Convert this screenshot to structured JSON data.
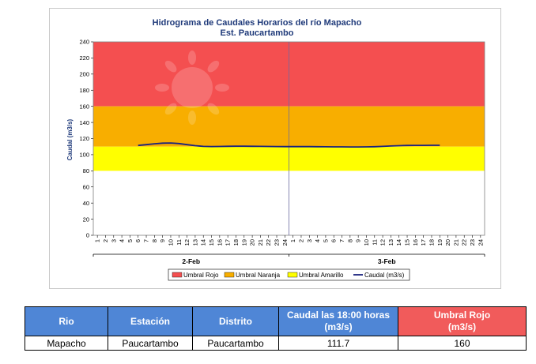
{
  "chart_data": {
    "type": "line",
    "title": "Hidrograma de Caudales Horarios del río Mapacho",
    "subtitle": "Est. Paucartambo",
    "ylabel": "Caudal (m3/s)",
    "ylim": [
      0,
      240
    ],
    "yticks": [
      0,
      20,
      40,
      60,
      80,
      100,
      120,
      140,
      160,
      180,
      200,
      220,
      240
    ],
    "hour_ticks": [
      "1",
      "2",
      "3",
      "4",
      "5",
      "6",
      "7",
      "8",
      "9",
      "10",
      "11",
      "12",
      "13",
      "14",
      "15",
      "16",
      "17",
      "18",
      "19",
      "20",
      "21",
      "22",
      "23",
      "24",
      "1",
      "2",
      "3",
      "4",
      "5",
      "6",
      "7",
      "8",
      "9",
      "10",
      "11",
      "12",
      "13",
      "14",
      "15",
      "16",
      "17",
      "18",
      "19",
      "20",
      "21",
      "22",
      "23",
      "24"
    ],
    "days": [
      "2-Feb",
      "3-Feb"
    ],
    "bands": [
      {
        "name": "Umbral Rojo",
        "from": 160,
        "to": 240,
        "color": "#f44f50"
      },
      {
        "name": "Umbral Naranja",
        "from": 110,
        "to": 160,
        "color": "#f8ae00"
      },
      {
        "name": "Umbral Amarillo",
        "from": 80,
        "to": 110,
        "color": "#ffff00"
      }
    ],
    "series": [
      {
        "name": "Caudal (m3/s)",
        "color": "#1a237e",
        "start_index": 5,
        "values": [
          111.5,
          112.5,
          113.5,
          114.3,
          114.5,
          113.8,
          112.5,
          111.2,
          110.3,
          110.1,
          110.2,
          110.4,
          110.5,
          110.5,
          110.4,
          110.3,
          110.2,
          110.1,
          110.0,
          110.0,
          110.0,
          110.0,
          109.9,
          109.8,
          109.7,
          109.7,
          109.6,
          109.6,
          109.7,
          109.9,
          110.3,
          110.8,
          111.2,
          111.5,
          111.6,
          111.6,
          111.7,
          111.7
        ]
      }
    ],
    "legend": {
      "position": "bottom",
      "items": [
        {
          "label": "Umbral Rojo",
          "color": "#f44f50",
          "kind": "box"
        },
        {
          "label": "Umbral Naranja",
          "color": "#f8ae00",
          "kind": "box"
        },
        {
          "label": "Umbral Amarillo",
          "color": "#ffff00",
          "kind": "box"
        },
        {
          "label": "Caudal (m3/s)",
          "color": "#1a237e",
          "kind": "line"
        }
      ]
    },
    "grid": false
  },
  "table": {
    "headers": {
      "rio": "Rio",
      "estacion": "Estación",
      "distrito": "Distrito",
      "caudal": "Caudal las 18:00 horas",
      "caudal_unit": "(m3/s)",
      "umbral": "Umbral Rojo",
      "umbral_unit": "(m3/s)"
    },
    "row": {
      "rio": "Mapacho",
      "estacion": "Paucartambo",
      "distrito": "Paucartambo",
      "caudal": "111.7",
      "umbral": "160"
    }
  }
}
